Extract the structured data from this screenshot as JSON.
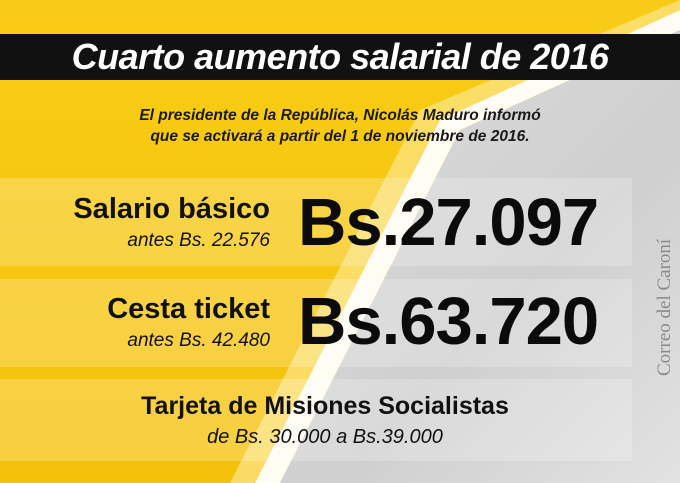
{
  "header": {
    "title": "Cuarto aumento salarial de 2016"
  },
  "intro": {
    "line1": "El presidente de la República, Nicolás Maduro informó",
    "line2": "que se activará a partir del 1 de noviembre de 2016."
  },
  "items": [
    {
      "label": "Salario básico",
      "before": "antes Bs. 22.576",
      "amount": "Bs.27.097"
    },
    {
      "label": "Cesta ticket",
      "before": "antes Bs. 42.480",
      "amount": "Bs.63.720"
    }
  ],
  "tarjeta": {
    "label": "Tarjeta de Misiones Socialistas",
    "range": "de Bs. 30.000 a Bs.39.000"
  },
  "watermark": {
    "text": "Correo del Caroní"
  },
  "colors": {
    "yellow": "#f6c50e",
    "black": "#111111",
    "white": "#ffffff"
  }
}
